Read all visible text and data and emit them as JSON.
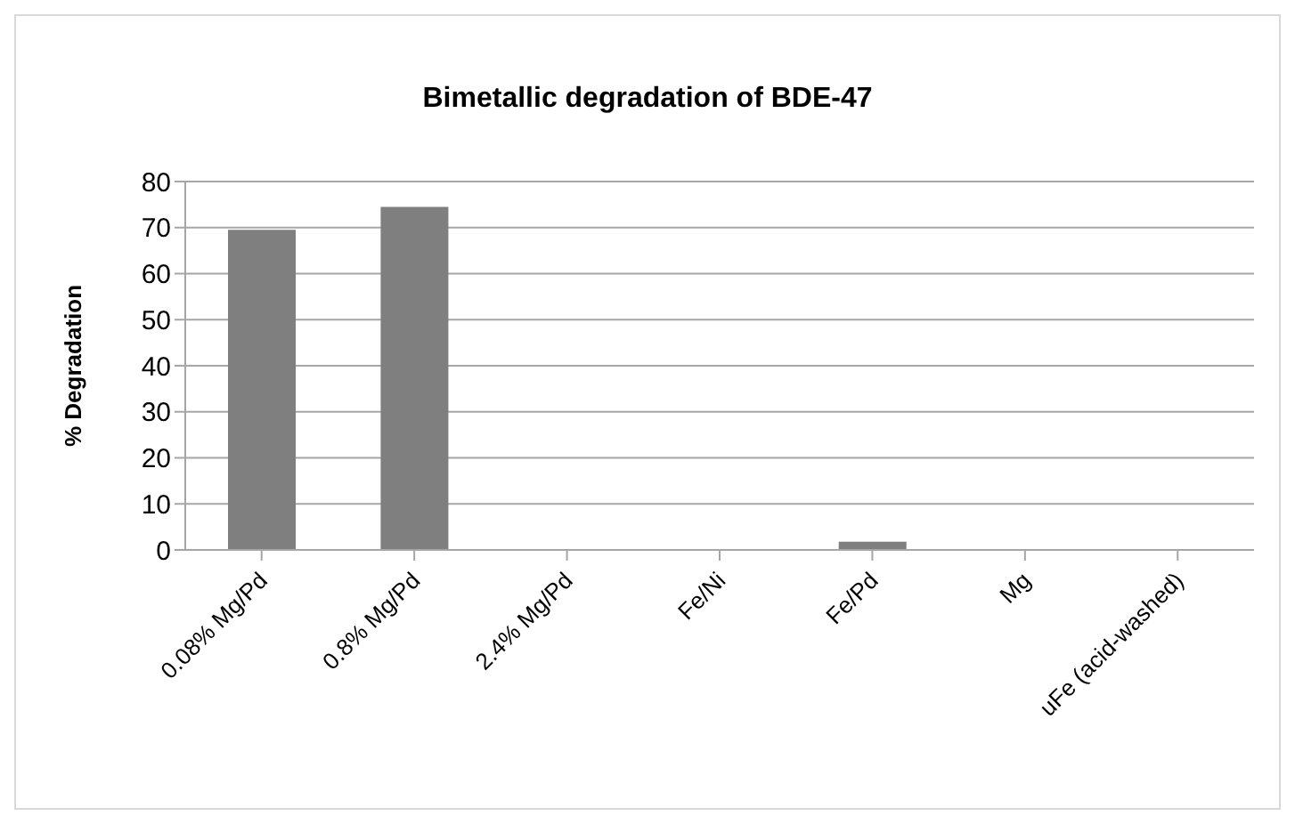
{
  "chart_data": {
    "type": "bar",
    "title": "Bimetallic degradation of BDE-47",
    "ylabel": "% Degradation",
    "categories": [
      "0.08% Mg/Pd",
      "0.8% Mg/Pd",
      "2.4% Mg/Pd",
      "Fe/Ni",
      "Fe/Pd",
      "Mg",
      "uFe (acid-washed)"
    ],
    "values": [
      69.5,
      74.5,
      0,
      0,
      1.8,
      0,
      0
    ],
    "color": "#7f7f7f",
    "ylim": [
      0,
      80
    ],
    "yticks": [
      0,
      10,
      20,
      30,
      40,
      50,
      60,
      70,
      80
    ],
    "grid": "y",
    "legend": false
  }
}
